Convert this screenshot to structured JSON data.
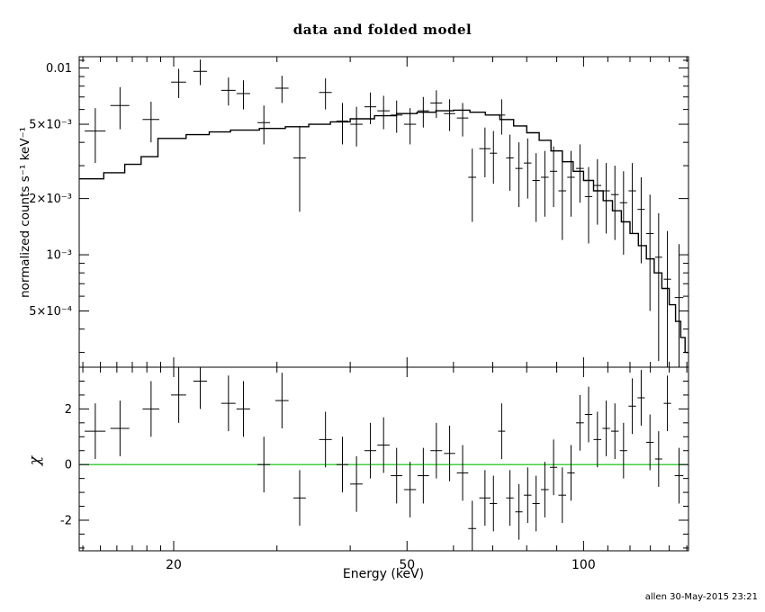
{
  "header": {
    "title": "data and folded model"
  },
  "footer": {
    "timestamp": "allen 30-May-2015 23:21"
  },
  "colors": {
    "foreground": "#000000",
    "background": "#ffffff",
    "zero_line": "#00c000",
    "model_line": "#000000"
  },
  "chart_data": [
    {
      "type": "scatter",
      "panel": "spectrum",
      "title": "data and folded model",
      "xlabel": "",
      "ylabel": "normalized counts s⁻¹ keV⁻¹",
      "xscale": "log",
      "yscale": "log",
      "xlim": [
        13.8,
        151
      ],
      "ylim": [
        0.00025,
        0.0115
      ],
      "grid": false,
      "y_major_ticks": [
        {
          "value": 0.01,
          "label": "0.01"
        },
        {
          "value": 0.005,
          "label": "5×10⁻³"
        },
        {
          "value": 0.002,
          "label": "2×10⁻³"
        },
        {
          "value": 0.001,
          "label": "10⁻³"
        },
        {
          "value": 0.0005,
          "label": "5×10⁻⁴"
        }
      ],
      "y_minor_ticks": [
        0.0003,
        0.0004,
        0.0006,
        0.0007,
        0.0008,
        0.0009,
        0.003,
        0.004,
        0.006,
        0.007,
        0.008,
        0.009,
        0.011
      ],
      "series": [
        {
          "name": "data",
          "style": "error-cross",
          "point_format": [
            "energy_keV",
            "energy_halfwidth_keV",
            "rate",
            "rate_error"
          ],
          "points": [
            [
              14.7,
              0.6,
              0.0046,
              0.0015
            ],
            [
              16.2,
              0.6,
              0.0063,
              0.0016
            ],
            [
              18.3,
              0.6,
              0.0053,
              0.0013
            ],
            [
              20.4,
              0.6,
              0.0084,
              0.0015
            ],
            [
              22.2,
              0.6,
              0.0096,
              0.0015
            ],
            [
              24.8,
              0.7,
              0.0076,
              0.0013
            ],
            [
              26.3,
              0.7,
              0.0073,
              0.0013
            ],
            [
              28.5,
              0.7,
              0.0051,
              0.0012
            ],
            [
              30.6,
              0.8,
              0.0078,
              0.0013
            ],
            [
              32.8,
              0.8,
              0.0033,
              0.0016
            ],
            [
              36.3,
              0.9,
              0.0074,
              0.0014
            ],
            [
              38.8,
              0.9,
              0.0052,
              0.0013
            ],
            [
              41.0,
              1.0,
              0.005,
              0.0012
            ],
            [
              43.3,
              1.0,
              0.0062,
              0.0012
            ],
            [
              45.6,
              1.1,
              0.0059,
              0.0012
            ],
            [
              48.0,
              1.1,
              0.0056,
              0.0011
            ],
            [
              50.6,
              1.2,
              0.005,
              0.0011
            ],
            [
              53.3,
              1.2,
              0.0059,
              0.0011
            ],
            [
              56.1,
              1.3,
              0.0065,
              0.0011
            ],
            [
              59.1,
              1.3,
              0.0057,
              0.0011
            ],
            [
              62.2,
              1.4,
              0.0054,
              0.0011
            ],
            [
              64.6,
              1.0,
              0.0026,
              0.0011
            ],
            [
              67.9,
              1.5,
              0.0037,
              0.0011
            ],
            [
              70.2,
              1.0,
              0.0035,
              0.0011
            ],
            [
              72.5,
              1.0,
              0.0056,
              0.0012
            ],
            [
              74.9,
              1.1,
              0.0033,
              0.0011
            ],
            [
              77.6,
              1.1,
              0.0029,
              0.0011
            ],
            [
              80.3,
              1.2,
              0.0031,
              0.0011
            ],
            [
              83.0,
              1.2,
              0.0025,
              0.001
            ],
            [
              85.9,
              1.3,
              0.0026,
              0.001
            ],
            [
              88.9,
              1.3,
              0.0028,
              0.001
            ],
            [
              92.0,
              1.4,
              0.0022,
              0.001
            ],
            [
              95.2,
              1.4,
              0.0026,
              0.001
            ],
            [
              98.6,
              1.5,
              0.0029,
              0.001
            ],
            [
              102.0,
              1.5,
              0.00205,
              0.0009
            ],
            [
              105.6,
              1.6,
              0.00235,
              0.0009
            ],
            [
              109.3,
              1.6,
              0.0022,
              0.0009
            ],
            [
              113.1,
              1.7,
              0.0021,
              0.0009
            ],
            [
              117.0,
              1.7,
              0.0019,
              0.0009
            ],
            [
              121.1,
              1.8,
              0.0022,
              0.0009
            ],
            [
              125.4,
              1.8,
              0.00175,
              0.00085
            ],
            [
              129.8,
              1.9,
              0.0013,
              0.0008
            ],
            [
              134.3,
              1.9,
              0.00097,
              0.0007
            ],
            [
              139.0,
              2.0,
              0.00074,
              0.0006
            ],
            [
              145.5,
              2.5,
              0.00059,
              0.00055
            ]
          ]
        },
        {
          "name": "folded model",
          "style": "histogram-step",
          "bin_edges_keV": [
            13.8,
            15.2,
            16.5,
            17.6,
            18.8,
            21.0,
            23.0,
            25.0,
            28.0,
            31.0,
            34.0,
            37.0,
            40.0,
            44.0,
            48.0,
            52.0,
            56.0,
            60.0,
            64.0,
            68.0,
            72.0,
            76.0,
            80.0,
            84.0,
            88.0,
            92.0,
            96.0,
            100.0,
            104.0,
            108.0,
            112.0,
            116.0,
            120.0,
            124.0,
            128.0,
            132.0,
            136.0,
            140.0,
            143.5,
            146.5,
            149.0,
            151.0
          ],
          "values": [
            0.00255,
            0.00275,
            0.00305,
            0.00335,
            0.0042,
            0.0044,
            0.00455,
            0.00465,
            0.00475,
            0.00485,
            0.005,
            0.00515,
            0.00535,
            0.00555,
            0.0057,
            0.0058,
            0.0059,
            0.00595,
            0.0058,
            0.0056,
            0.0053,
            0.0049,
            0.0045,
            0.0041,
            0.0036,
            0.00315,
            0.0028,
            0.0025,
            0.0022,
            0.00195,
            0.00172,
            0.0015,
            0.0013,
            0.00112,
            0.00095,
            0.0008,
            0.00066,
            0.00054,
            0.00044,
            0.00036,
            0.0003
          ]
        }
      ]
    },
    {
      "type": "scatter",
      "panel": "residuals",
      "xlabel": "Energy (keV)",
      "ylabel": "χ",
      "xscale": "log",
      "yscale": "linear",
      "xlim": [
        13.8,
        151
      ],
      "ylim": [
        -3.1,
        3.5
      ],
      "grid": false,
      "zero_line_y": 0,
      "x_major_ticks": [
        {
          "value": 20,
          "label": "20"
        },
        {
          "value": 50,
          "label": "50"
        },
        {
          "value": 100,
          "label": "100"
        }
      ],
      "x_minor_ticks": [
        14,
        15,
        16,
        17,
        18,
        19,
        30,
        40,
        60,
        70,
        80,
        90,
        110,
        120,
        130,
        140,
        150
      ],
      "y_major_ticks": [
        {
          "value": -2,
          "label": "-2"
        },
        {
          "value": 0,
          "label": "0"
        },
        {
          "value": 2,
          "label": "2"
        }
      ],
      "y_minor_ticks": [
        -3,
        -2.5,
        -1.5,
        -1,
        -0.5,
        0.5,
        1,
        1.5,
        2.5,
        3
      ],
      "series": [
        {
          "name": "chi",
          "style": "error-cross",
          "point_format": [
            "energy_keV",
            "energy_halfwidth_keV",
            "chi",
            "chi_error"
          ],
          "points": [
            [
              14.7,
              0.6,
              1.2,
              1.0
            ],
            [
              16.2,
              0.6,
              1.3,
              1.0
            ],
            [
              18.3,
              0.6,
              2.0,
              1.0
            ],
            [
              20.4,
              0.6,
              2.5,
              1.0
            ],
            [
              22.2,
              0.6,
              3.0,
              1.0
            ],
            [
              24.8,
              0.7,
              2.2,
              1.0
            ],
            [
              26.3,
              0.7,
              2.0,
              1.0
            ],
            [
              28.5,
              0.7,
              0.0,
              1.0
            ],
            [
              30.6,
              0.8,
              2.3,
              1.0
            ],
            [
              32.8,
              0.8,
              -1.2,
              1.0
            ],
            [
              36.3,
              0.9,
              0.9,
              1.0
            ],
            [
              38.8,
              0.9,
              0.0,
              1.0
            ],
            [
              41.0,
              1.0,
              -0.7,
              1.0
            ],
            [
              43.3,
              1.0,
              0.5,
              1.0
            ],
            [
              45.6,
              1.1,
              0.7,
              1.0
            ],
            [
              48.0,
              1.1,
              -0.4,
              1.0
            ],
            [
              50.6,
              1.2,
              -0.9,
              1.0
            ],
            [
              53.3,
              1.2,
              -0.4,
              1.0
            ],
            [
              56.1,
              1.3,
              0.5,
              1.0
            ],
            [
              59.1,
              1.3,
              0.4,
              1.0
            ],
            [
              62.2,
              1.4,
              -0.3,
              1.0
            ],
            [
              64.6,
              1.0,
              -2.3,
              1.0
            ],
            [
              67.9,
              1.5,
              -1.2,
              1.0
            ],
            [
              70.2,
              1.0,
              -1.4,
              1.0
            ],
            [
              72.5,
              1.0,
              1.2,
              1.0
            ],
            [
              74.9,
              1.1,
              -1.2,
              1.0
            ],
            [
              77.6,
              1.1,
              -1.7,
              1.0
            ],
            [
              80.3,
              1.2,
              -1.1,
              1.0
            ],
            [
              83.0,
              1.2,
              -1.4,
              1.0
            ],
            [
              85.9,
              1.3,
              -0.9,
              1.0
            ],
            [
              88.9,
              1.3,
              -0.1,
              1.0
            ],
            [
              92.0,
              1.4,
              -1.1,
              1.0
            ],
            [
              95.2,
              1.4,
              -0.3,
              1.0
            ],
            [
              98.6,
              1.5,
              1.5,
              1.0
            ],
            [
              102.0,
              1.5,
              1.8,
              1.0
            ],
            [
              105.6,
              1.6,
              0.9,
              1.0
            ],
            [
              109.3,
              1.6,
              1.3,
              1.0
            ],
            [
              113.1,
              1.7,
              1.2,
              1.0
            ],
            [
              117.0,
              1.7,
              0.5,
              1.0
            ],
            [
              121.1,
              1.8,
              2.1,
              1.0
            ],
            [
              125.4,
              1.8,
              2.4,
              1.0
            ],
            [
              129.8,
              1.9,
              0.8,
              1.0
            ],
            [
              134.3,
              1.9,
              0.2,
              1.0
            ],
            [
              139.0,
              2.0,
              2.2,
              1.0
            ],
            [
              145.5,
              2.5,
              -0.4,
              1.0
            ]
          ]
        }
      ]
    }
  ]
}
